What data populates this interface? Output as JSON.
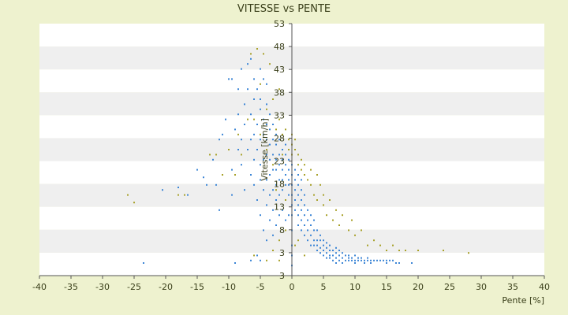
{
  "chart_data": {
    "type": "scatter",
    "title": "VITESSE vs PENTE",
    "xlabel": "Pente [%]",
    "ylabel": "Vitesse [km/h]",
    "xlim": [
      -40,
      40
    ],
    "ylim": [
      3,
      53
    ],
    "x_ticks": [
      "-40",
      "-35",
      "-30",
      "-25",
      "-20",
      "-15",
      "-10",
      "-5",
      "0",
      "5",
      "10",
      "15",
      "20",
      "25",
      "30",
      "35",
      "40"
    ],
    "y_ticks": [
      "3",
      "3",
      "8",
      "13",
      "18",
      "23",
      "28",
      "33",
      "38",
      "43",
      "48",
      "53"
    ],
    "band_colors": [
      "#ffffff",
      "#efefef"
    ],
    "series": [
      {
        "color": "#3d86d6",
        "points": [
          [
            -23.5,
            5.5
          ],
          [
            -20.5,
            20
          ],
          [
            -18,
            20.5
          ],
          [
            -16.5,
            19
          ],
          [
            -15,
            24
          ],
          [
            -14,
            22.5
          ],
          [
            -13.5,
            21
          ],
          [
            -12.5,
            26
          ],
          [
            -12,
            21
          ],
          [
            -11.5,
            16
          ],
          [
            -11.5,
            30
          ],
          [
            -11,
            31
          ],
          [
            -10.5,
            34
          ],
          [
            -10,
            28
          ],
          [
            -10,
            42
          ],
          [
            -9.5,
            19
          ],
          [
            -9.5,
            42
          ],
          [
            -9.5,
            24
          ],
          [
            -9,
            5.5
          ],
          [
            -9,
            32
          ],
          [
            -8.5,
            28
          ],
          [
            -8.5,
            35
          ],
          [
            -8.5,
            40
          ],
          [
            -8,
            25
          ],
          [
            -8,
            30
          ],
          [
            -8,
            44
          ],
          [
            -7.5,
            20
          ],
          [
            -7.5,
            33
          ],
          [
            -7.5,
            37
          ],
          [
            -7,
            28
          ],
          [
            -7,
            40
          ],
          [
            -7,
            45
          ],
          [
            -6.5,
            6
          ],
          [
            -6.5,
            23
          ],
          [
            -6.5,
            30
          ],
          [
            -6.5,
            35
          ],
          [
            -6.5,
            46
          ],
          [
            -6,
            21
          ],
          [
            -6,
            26
          ],
          [
            -6,
            31
          ],
          [
            -6,
            38
          ],
          [
            -6,
            42
          ],
          [
            -5.5,
            7
          ],
          [
            -5.5,
            18
          ],
          [
            -5.5,
            28
          ],
          [
            -5.5,
            33
          ],
          [
            -5.5,
            40
          ],
          [
            -5,
            6
          ],
          [
            -5,
            15
          ],
          [
            -5,
            22
          ],
          [
            -5,
            25
          ],
          [
            -5,
            30
          ],
          [
            -5,
            36
          ],
          [
            -5,
            38
          ],
          [
            -5,
            44
          ],
          [
            -4.5,
            12
          ],
          [
            -4.5,
            20
          ],
          [
            -4.5,
            26
          ],
          [
            -4.5,
            31
          ],
          [
            -4.5,
            34
          ],
          [
            -4.5,
            42
          ],
          [
            -4,
            10
          ],
          [
            -4,
            17
          ],
          [
            -4,
            22
          ],
          [
            -4,
            27
          ],
          [
            -4,
            30
          ],
          [
            -4,
            33
          ],
          [
            -4,
            37
          ],
          [
            -4,
            41
          ],
          [
            -3.5,
            14
          ],
          [
            -3.5,
            19
          ],
          [
            -3.5,
            23
          ],
          [
            -3.5,
            26
          ],
          [
            -3.5,
            29
          ],
          [
            -3.5,
            32
          ],
          [
            -3.5,
            35
          ],
          [
            -3,
            11
          ],
          [
            -3,
            16
          ],
          [
            -3,
            20
          ],
          [
            -3,
            24
          ],
          [
            -3,
            27
          ],
          [
            -3,
            30
          ],
          [
            -3,
            33
          ],
          [
            -2.5,
            13
          ],
          [
            -2.5,
            18
          ],
          [
            -2.5,
            21
          ],
          [
            -2.5,
            24
          ],
          [
            -2.5,
            26
          ],
          [
            -2.5,
            29
          ],
          [
            -2.5,
            31
          ],
          [
            -2,
            15
          ],
          [
            -2,
            19
          ],
          [
            -2,
            22
          ],
          [
            -2,
            25
          ],
          [
            -2,
            27
          ],
          [
            -2,
            30
          ],
          [
            -1.5,
            16
          ],
          [
            -1.5,
            20
          ],
          [
            -1.5,
            22
          ],
          [
            -1.5,
            24
          ],
          [
            -1.5,
            26
          ],
          [
            -1.5,
            28
          ],
          [
            -1,
            14
          ],
          [
            -1,
            18
          ],
          [
            -1,
            21
          ],
          [
            -1,
            23
          ],
          [
            -1,
            25
          ],
          [
            -1,
            27
          ],
          [
            -1,
            29
          ],
          [
            -0.5,
            15
          ],
          [
            -0.5,
            19
          ],
          [
            -0.5,
            21
          ],
          [
            -0.5,
            22
          ],
          [
            -0.5,
            24
          ],
          [
            -0.5,
            26
          ],
          [
            0,
            5
          ],
          [
            0,
            7
          ],
          [
            0,
            9
          ],
          [
            0,
            12
          ],
          [
            0,
            15
          ],
          [
            0,
            17
          ],
          [
            0,
            19
          ],
          [
            0,
            21
          ],
          [
            0,
            23
          ],
          [
            0,
            25
          ],
          [
            0.5,
            16
          ],
          [
            0.5,
            18
          ],
          [
            0.5,
            20
          ],
          [
            0.5,
            22
          ],
          [
            0.5,
            24
          ],
          [
            1,
            13
          ],
          [
            1,
            15
          ],
          [
            1,
            17
          ],
          [
            1,
            19
          ],
          [
            1,
            21
          ],
          [
            1,
            23
          ],
          [
            1.5,
            12
          ],
          [
            1.5,
            14
          ],
          [
            1.5,
            16
          ],
          [
            1.5,
            18
          ],
          [
            1.5,
            20
          ],
          [
            1.5,
            22
          ],
          [
            2,
            11
          ],
          [
            2,
            13
          ],
          [
            2,
            15
          ],
          [
            2,
            17
          ],
          [
            2,
            19
          ],
          [
            2.5,
            10
          ],
          [
            2.5,
            12
          ],
          [
            2.5,
            14
          ],
          [
            2.5,
            16
          ],
          [
            3,
            9
          ],
          [
            3,
            11
          ],
          [
            3,
            13
          ],
          [
            3,
            15
          ],
          [
            3.5,
            9
          ],
          [
            3.5,
            10
          ],
          [
            3.5,
            12
          ],
          [
            3.5,
            14
          ],
          [
            4,
            8
          ],
          [
            4,
            9
          ],
          [
            4,
            10
          ],
          [
            4,
            12
          ],
          [
            4.5,
            7.5
          ],
          [
            4.5,
            8.5
          ],
          [
            4.5,
            10
          ],
          [
            4.5,
            11
          ],
          [
            5,
            7
          ],
          [
            5,
            8
          ],
          [
            5,
            9
          ],
          [
            5,
            10
          ],
          [
            5.5,
            6.5
          ],
          [
            5.5,
            7.5
          ],
          [
            5.5,
            8.5
          ],
          [
            5.5,
            9.5
          ],
          [
            6,
            6.5
          ],
          [
            6,
            7
          ],
          [
            6,
            8
          ],
          [
            6,
            9
          ],
          [
            6.5,
            6
          ],
          [
            6.5,
            7
          ],
          [
            6.5,
            8
          ],
          [
            7,
            5.5
          ],
          [
            7,
            6.5
          ],
          [
            7,
            7.5
          ],
          [
            7,
            8.5
          ],
          [
            7.5,
            6
          ],
          [
            7.5,
            7
          ],
          [
            7.5,
            8
          ],
          [
            8,
            5.5
          ],
          [
            8,
            6.5
          ],
          [
            8,
            7.5
          ],
          [
            8.5,
            6
          ],
          [
            8.5,
            7
          ],
          [
            9,
            6
          ],
          [
            9,
            6.5
          ],
          [
            9,
            7
          ],
          [
            9.5,
            6
          ],
          [
            9.5,
            6.5
          ],
          [
            10,
            5.5
          ],
          [
            10,
            6
          ],
          [
            10,
            7
          ],
          [
            10.5,
            6
          ],
          [
            10.5,
            6.5
          ],
          [
            11,
            6
          ],
          [
            11,
            6.5
          ],
          [
            11.5,
            5.5
          ],
          [
            11.5,
            6
          ],
          [
            12,
            6
          ],
          [
            12,
            6.5
          ],
          [
            12.5,
            5.5
          ],
          [
            12.5,
            6
          ],
          [
            13,
            6
          ],
          [
            13.5,
            6
          ],
          [
            14,
            6
          ],
          [
            14.5,
            6
          ],
          [
            15,
            5.5
          ],
          [
            15,
            6
          ],
          [
            15.5,
            6
          ],
          [
            16,
            6
          ],
          [
            16.5,
            5.5
          ],
          [
            17,
            5.5
          ],
          [
            19,
            5.5
          ]
        ]
      },
      {
        "color": "#a8a12a",
        "points": [
          [
            -26,
            19
          ],
          [
            -25,
            17.5
          ],
          [
            -18,
            19
          ],
          [
            -17,
            19
          ],
          [
            -13,
            27
          ],
          [
            -12,
            27
          ],
          [
            -11,
            23
          ],
          [
            -10,
            28
          ],
          [
            -9,
            23
          ],
          [
            -8.5,
            31
          ],
          [
            -8,
            27
          ],
          [
            -7,
            34
          ],
          [
            -6.5,
            47
          ],
          [
            -6,
            34
          ],
          [
            -5.5,
            48
          ],
          [
            -5,
            31
          ],
          [
            -5,
            41
          ],
          [
            -4.5,
            47
          ],
          [
            -4,
            36
          ],
          [
            -4,
            28
          ],
          [
            -3.5,
            45
          ],
          [
            -3,
            25
          ],
          [
            -3,
            38
          ],
          [
            -2.5,
            32
          ],
          [
            -2.5,
            20
          ],
          [
            -2,
            40
          ],
          [
            -2,
            34
          ],
          [
            -1.5,
            27
          ],
          [
            -1.5,
            31
          ],
          [
            -1,
            32
          ],
          [
            -1,
            18
          ],
          [
            -0.5,
            28
          ],
          [
            -0.5,
            30
          ],
          [
            0,
            31
          ],
          [
            0,
            29
          ],
          [
            0,
            27
          ],
          [
            0.5,
            28
          ],
          [
            0.5,
            30
          ],
          [
            1,
            27
          ],
          [
            1,
            25
          ],
          [
            1.5,
            26
          ],
          [
            1.5,
            24
          ],
          [
            2,
            25
          ],
          [
            2,
            23
          ],
          [
            2.5,
            22
          ],
          [
            3,
            21
          ],
          [
            3,
            24
          ],
          [
            3.5,
            19
          ],
          [
            4,
            23
          ],
          [
            4,
            18
          ],
          [
            4.5,
            21
          ],
          [
            5,
            17
          ],
          [
            5,
            19
          ],
          [
            5.5,
            15
          ],
          [
            6,
            18
          ],
          [
            6.5,
            14
          ],
          [
            7,
            16
          ],
          [
            7.5,
            13
          ],
          [
            8,
            15
          ],
          [
            9,
            12
          ],
          [
            9.5,
            14
          ],
          [
            10,
            11
          ],
          [
            11,
            12
          ],
          [
            12,
            9
          ],
          [
            13,
            10
          ],
          [
            14,
            9
          ],
          [
            15,
            8
          ],
          [
            16,
            9
          ],
          [
            17,
            8
          ],
          [
            18,
            8
          ],
          [
            20,
            8
          ],
          [
            24,
            8
          ],
          [
            28,
            7.5
          ],
          [
            -3,
            8
          ],
          [
            -2,
            10
          ],
          [
            -1,
            12
          ],
          [
            0.5,
            9
          ],
          [
            1,
            10
          ],
          [
            -4,
            6
          ],
          [
            -2,
            6
          ],
          [
            2,
            7
          ],
          [
            -6,
            7
          ]
        ]
      }
    ]
  }
}
